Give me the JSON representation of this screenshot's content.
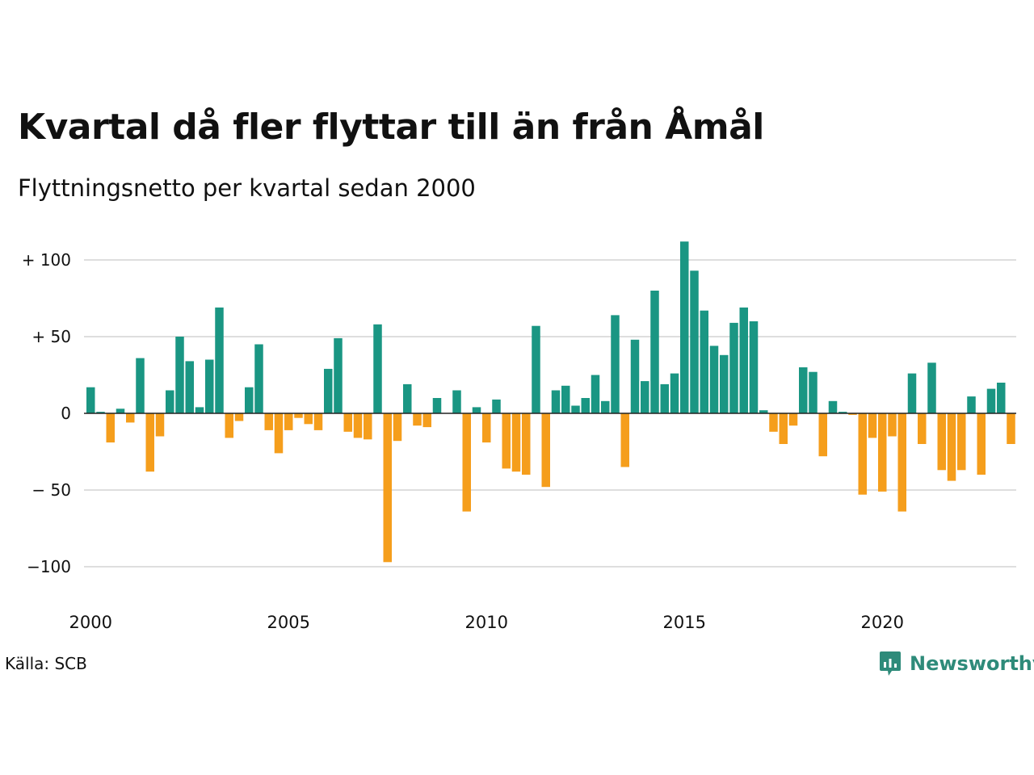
{
  "title": "Kvartal då fler flyttar till än från Åmål",
  "subtitle": "Flyttningsnetto per kvartal sedan 2000",
  "source": "Källa: SCB",
  "brand": {
    "name": "Newsworthy",
    "icon": "newsworthy-chart-bubble-icon",
    "color": "#2e8b7a"
  },
  "colors": {
    "positive": "#1a9683",
    "negative": "#f59e1c",
    "grid": "#dedede",
    "zero": "#222222",
    "text": "#111111"
  },
  "chart_data": {
    "type": "bar",
    "title": "Kvartal då fler flyttar till än från Åmål",
    "subtitle": "Flyttningsnetto per kvartal sedan 2000",
    "xlabel": "",
    "ylabel": "",
    "ylim": [
      -120,
      112
    ],
    "grid": true,
    "legend": "none",
    "start": "2000 Q1",
    "y_ticks": [
      {
        "value": 100,
        "label": "+ 100"
      },
      {
        "value": 50,
        "label": "+  50"
      },
      {
        "value": 0,
        "label": "0"
      },
      {
        "value": -50,
        "label": "− 50"
      },
      {
        "value": -100,
        "label": "−100"
      }
    ],
    "x_ticks": [
      {
        "value": "2000",
        "q": 0
      },
      {
        "value": "2005",
        "q": 20
      },
      {
        "value": "2010",
        "q": 40
      },
      {
        "value": "2015",
        "q": 60
      },
      {
        "value": "2020",
        "q": 80
      }
    ],
    "values": [
      17,
      1,
      -19,
      3,
      -6,
      36,
      -38,
      -15,
      15,
      50,
      34,
      4,
      35,
      69,
      -16,
      -5,
      17,
      45,
      -11,
      -26,
      -11,
      -3,
      -7,
      -11,
      29,
      49,
      -12,
      -16,
      -17,
      58,
      -97,
      -18,
      19,
      -8,
      -9,
      10,
      0,
      15,
      -64,
      4,
      -19,
      9,
      -36,
      -38,
      -40,
      57,
      -48,
      15,
      18,
      5,
      10,
      25,
      8,
      64,
      -35,
      48,
      21,
      80,
      19,
      26,
      112,
      93,
      67,
      44,
      38,
      59,
      69,
      60,
      2,
      -12,
      -20,
      -8,
      30,
      27,
      -28,
      8,
      1,
      -1,
      -53,
      -16,
      -51,
      -15,
      -64,
      26,
      -20,
      33,
      -37,
      -44,
      -37,
      11,
      -40,
      16,
      20,
      -20
    ]
  }
}
